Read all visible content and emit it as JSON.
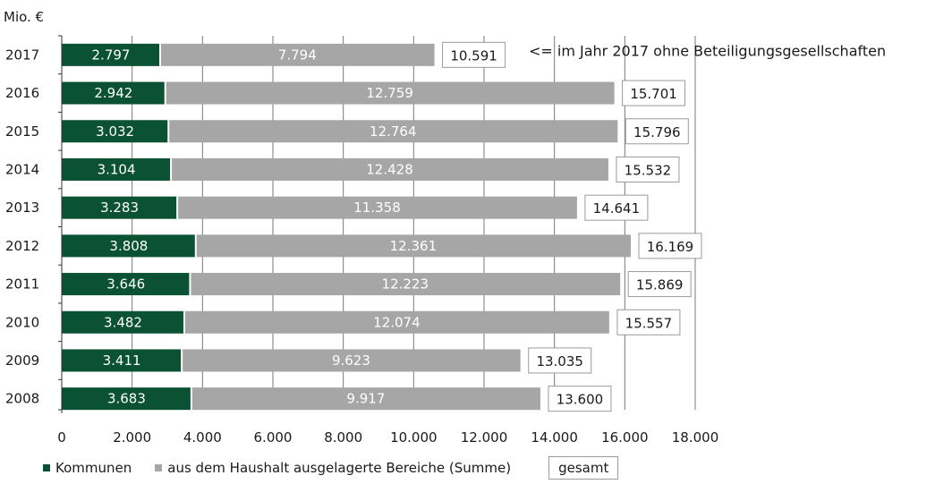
{
  "chart_data": {
    "type": "bar",
    "orientation": "horizontal",
    "stacked": true,
    "unit_label": "Mio. €",
    "categories": [
      "2017",
      "2016",
      "2015",
      "2014",
      "2013",
      "2012",
      "2011",
      "2010",
      "2009",
      "2008"
    ],
    "series": [
      {
        "name": "Kommunen",
        "color": "#0b5134",
        "values": [
          2797,
          2942,
          3032,
          3104,
          3283,
          3808,
          3646,
          3482,
          3411,
          3683
        ],
        "labels": [
          "2.797",
          "2.942",
          "3.032",
          "3.104",
          "3.283",
          "3.808",
          "3.646",
          "3.482",
          "3.411",
          "3.683"
        ]
      },
      {
        "name": "aus dem Haushalt ausgelagerte Bereiche (Summe)",
        "color": "#a6a6a6",
        "values": [
          7794,
          12759,
          12764,
          12428,
          11358,
          12361,
          12223,
          12074,
          9623,
          9917
        ],
        "labels": [
          "7.794",
          "12.759",
          "12.764",
          "12.428",
          "11.358",
          "12.361",
          "12.223",
          "12.074",
          "9.623",
          "9.917"
        ]
      }
    ],
    "totals": {
      "name": "gesamt",
      "values": [
        10591,
        15701,
        15796,
        15532,
        14641,
        16169,
        15869,
        15557,
        13035,
        13600
      ],
      "labels": [
        "10.591",
        "15.701",
        "15.796",
        "15.532",
        "14.641",
        "16.169",
        "15.869",
        "15.557",
        "13.035",
        "13.600"
      ]
    },
    "xlim": [
      0,
      18000
    ],
    "xticks": [
      0,
      2000,
      4000,
      6000,
      8000,
      10000,
      12000,
      14000,
      16000,
      18000
    ],
    "xtick_labels": [
      "0",
      "2.000",
      "4.000",
      "6.000",
      "8.000",
      "10.000",
      "12.000",
      "14.000",
      "16.000",
      "18.000"
    ],
    "grid": "vertical",
    "legend_position": "bottom-left",
    "annotation": "<= im Jahr 2017 ohne Beteiligungsgesellschaften"
  },
  "legend": {
    "kommunen": "Kommunen",
    "ausgelagert": "aus dem Haushalt ausgelagerte Bereiche (Summe)",
    "gesamt": "gesamt"
  }
}
